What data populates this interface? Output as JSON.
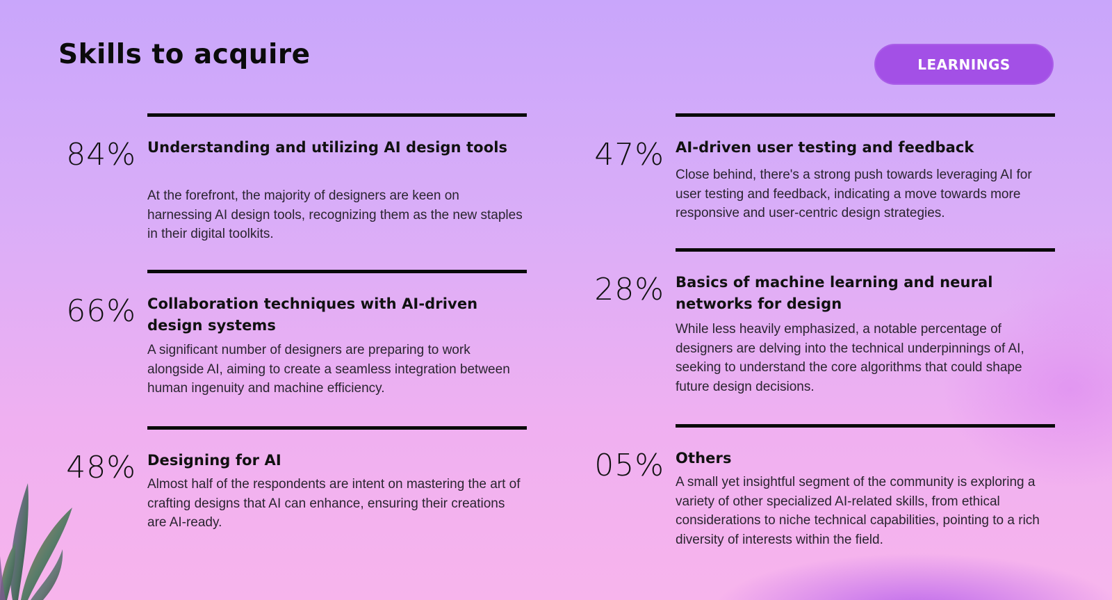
{
  "header": {
    "title": "Skills to acquire",
    "badge_label": "LEARNINGS"
  },
  "items": [
    {
      "percent": "84%",
      "heading": "Understanding and utilizing AI design tools",
      "description": "At the forefront, the majority of designers are keen on harnessing AI design tools, recognizing them as the new staples in their digital toolkits."
    },
    {
      "percent": "66%",
      "heading": "Collaboration techniques with AI-driven design systems",
      "description": "A significant number of designers are preparing to work alongside AI, aiming to create a seamless integration between human ingenuity and machine efficiency."
    },
    {
      "percent": "48%",
      "heading": "Designing for AI",
      "description": "Almost half of the respondents are intent on mastering the art of crafting designs that AI can enhance, ensuring their creations are AI-ready."
    },
    {
      "percent": "47%",
      "heading": "AI-driven user testing and feedback",
      "description": "Close behind, there's a strong push towards leveraging AI for user testing and feedback, indicating a move towards more responsive and user-centric design strategies."
    },
    {
      "percent": "28%",
      "heading": "Basics of machine learning and neural networks for design",
      "description": "While less heavily emphasized, a notable percentage of designers are delving into the technical underpinnings of AI, seeking to understand the core algorithms that could shape future design decisions."
    },
    {
      "percent": "05%",
      "heading": "Others",
      "description": "A small yet insightful segment of the community is exploring a variety of other specialized AI-related skills, from ethical considerations to niche technical capabilities, pointing to a rich diversity of interests within the field."
    }
  ],
  "colors": {
    "accent": "#a350e6",
    "rule": "#0a0a0a",
    "text": "#111111"
  },
  "decoration": {
    "icon": "plant-leaves-icon"
  }
}
